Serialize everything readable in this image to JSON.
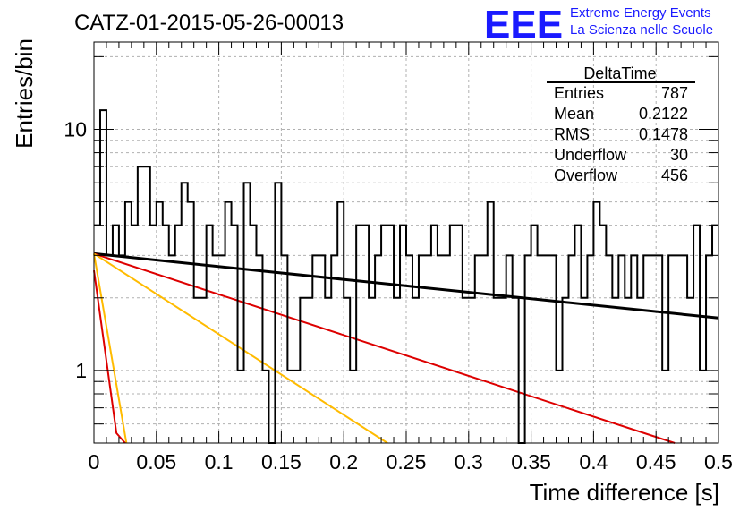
{
  "header": {
    "run_title": "CATZ-01-2015-05-26-00013",
    "logo_text": "EEE",
    "logo_line1": "Extreme Energy Events",
    "logo_line2": "La Scienza nelle Scuole"
  },
  "stats": {
    "title": "DeltaTime",
    "rows": [
      {
        "label": "Entries",
        "value": "787"
      },
      {
        "label": "Mean",
        "value": "0.2122"
      },
      {
        "label": "RMS",
        "value": "0.1478"
      },
      {
        "label": "Underflow",
        "value": "30"
      },
      {
        "label": "Overflow",
        "value": "456"
      }
    ]
  },
  "colors": {
    "histogram": "#000000",
    "fit_black": "#000000",
    "fit_red": "#dd0000",
    "fit_orange": "#ffbb00",
    "grid": "#b0b0b0",
    "logo": "#1a1aff"
  },
  "chart_data": {
    "type": "histogram",
    "log_y": true,
    "grid": true,
    "xlabel": "Time difference [s]",
    "ylabel": "Entries/bin",
    "xlim": [
      0,
      0.5
    ],
    "ylim": [
      0.5,
      23
    ],
    "x_ticks": [
      "0",
      "0.05",
      "0.1",
      "0.15",
      "0.2",
      "0.25",
      "0.3",
      "0.35",
      "0.4",
      "0.45",
      "0.5"
    ],
    "y_ticks": [
      "1",
      "10"
    ],
    "bin_width": 0.005,
    "bin_counts": [
      4,
      12,
      3,
      4,
      3,
      5,
      4,
      7,
      7,
      4,
      5,
      4,
      3,
      4,
      6,
      5,
      2,
      2,
      4,
      3,
      3,
      5,
      4,
      1,
      6,
      4,
      3,
      1,
      0,
      6,
      3,
      1,
      1,
      2,
      2,
      3,
      3,
      2,
      3,
      5,
      2,
      1,
      4,
      4,
      2,
      3,
      4,
      4,
      2,
      4,
      3,
      2,
      3,
      3,
      4,
      3,
      3,
      4,
      4,
      2,
      2,
      3,
      3,
      5,
      2,
      2,
      3,
      2,
      0,
      3,
      4,
      3,
      3,
      3,
      1,
      2,
      3,
      4,
      2,
      3,
      5,
      4,
      3,
      2,
      3,
      2,
      3,
      2,
      3,
      3,
      3,
      1,
      3,
      3,
      3,
      2,
      4,
      1,
      3,
      4
    ],
    "fits": [
      {
        "color": "black",
        "x": [
          0,
          0.5
        ],
        "y": [
          3.05,
          1.65
        ]
      },
      {
        "color": "red",
        "x": [
          0,
          0.465
        ],
        "y": [
          3.05,
          0.5
        ]
      },
      {
        "color": "orange",
        "x": [
          0,
          0.235
        ],
        "y": [
          3.05,
          0.5
        ]
      },
      {
        "color": "orange",
        "x": [
          0,
          0.026
        ],
        "y": [
          3.05,
          0.5
        ]
      },
      {
        "color": "red",
        "x": [
          0,
          0.018,
          0.025
        ],
        "y": [
          2.6,
          0.55,
          0.5
        ]
      }
    ]
  }
}
